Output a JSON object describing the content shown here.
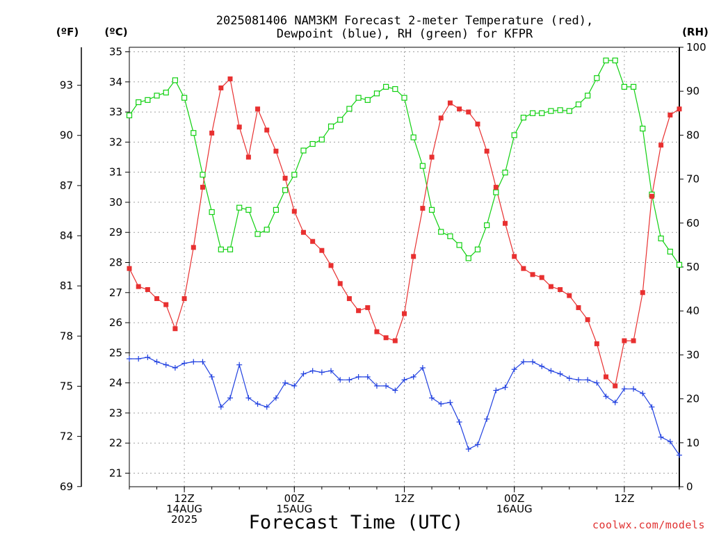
{
  "chart_data": {
    "type": "line",
    "title_line1": "2025081406 NAM3KM Forecast 2-meter Temperature (red),",
    "title_line2": "Dewpoint (blue), RH (green) for KFPR",
    "xlabel": "Forecast Time (UTC)",
    "left_unit_f": "(ºF)",
    "left_unit_c": "(ºC)",
    "right_unit": "(RH)",
    "credit": "coolwx.com/models",
    "grid": true,
    "x_ticks": [
      {
        "hour": 6,
        "lines": [
          "12Z",
          "14AUG",
          "2025"
        ]
      },
      {
        "hour": 18,
        "lines": [
          "00Z",
          "15AUG"
        ]
      },
      {
        "hour": 30,
        "lines": [
          "12Z"
        ]
      },
      {
        "hour": 42,
        "lines": [
          "00Z",
          "16AUG"
        ]
      },
      {
        "hour": 54,
        "lines": [
          "12Z"
        ]
      }
    ],
    "x_range_hours": [
      0,
      60
    ],
    "c_ticks": [
      21,
      22,
      23,
      24,
      25,
      26,
      27,
      28,
      29,
      30,
      31,
      32,
      33,
      34,
      35
    ],
    "f_ticks": [
      69,
      72,
      75,
      78,
      81,
      84,
      87,
      90,
      93
    ],
    "rh_ticks": [
      0,
      10,
      20,
      30,
      40,
      50,
      60,
      70,
      80,
      90,
      100
    ],
    "c_range": [
      20.55,
      35.15
    ],
    "rh_range": [
      0,
      100
    ],
    "colors": {
      "temperature": "#e83030",
      "dewpoint": "#2040e0",
      "rh": "#10d010",
      "axis": "#000000",
      "grid": "#a0a0a0",
      "credit": "#e03030"
    },
    "series": [
      {
        "name": "Temperature",
        "unit": "°C",
        "values": [
          27.8,
          27.2,
          27.1,
          26.8,
          26.6,
          25.8,
          26.8,
          28.5,
          30.5,
          32.3,
          33.8,
          34.1,
          32.5,
          31.5,
          33.1,
          32.4,
          31.7,
          30.8,
          29.7,
          29.0,
          28.7,
          28.4,
          27.9,
          27.3,
          26.8,
          26.4,
          26.5,
          25.7,
          25.5,
          25.4,
          26.3,
          28.2,
          29.8,
          31.5,
          32.8,
          33.3,
          33.1,
          33.0,
          32.6,
          31.7,
          30.5,
          29.3,
          28.2,
          27.8,
          27.6,
          27.5,
          27.2,
          27.1,
          26.9,
          26.5,
          26.1,
          25.3,
          24.2,
          23.9,
          25.4,
          25.4,
          27.0,
          30.2,
          31.9,
          32.9,
          33.1
        ]
      },
      {
        "name": "Dewpoint",
        "unit": "°C",
        "values": [
          24.8,
          24.8,
          24.85,
          24.7,
          24.6,
          24.5,
          24.65,
          24.7,
          24.7,
          24.2,
          23.2,
          23.5,
          24.6,
          23.5,
          23.3,
          23.2,
          23.5,
          24.0,
          23.9,
          24.3,
          24.4,
          24.35,
          24.4,
          24.1,
          24.1,
          24.2,
          24.2,
          23.9,
          23.9,
          23.75,
          24.1,
          24.2,
          24.5,
          23.5,
          23.3,
          23.35,
          22.7,
          21.8,
          21.95,
          22.8,
          23.75,
          23.85,
          24.45,
          24.7,
          24.7,
          24.55,
          24.4,
          24.3,
          24.15,
          24.1,
          24.1,
          24.0,
          23.55,
          23.35,
          23.8,
          23.8,
          23.65,
          23.2,
          22.2,
          22.05,
          21.6
        ]
      },
      {
        "name": "RH",
        "unit": "%",
        "values": [
          84.5,
          87.5,
          88.0,
          89.0,
          89.7,
          92.5,
          88.5,
          80.5,
          71.0,
          62.5,
          54.0,
          54.0,
          63.5,
          63.0,
          57.5,
          58.5,
          63.0,
          67.5,
          71.0,
          76.5,
          78.0,
          79.0,
          82.0,
          83.5,
          86.0,
          88.5,
          88.0,
          89.5,
          91.0,
          90.5,
          88.5,
          79.5,
          73.0,
          63.0,
          58.0,
          57.0,
          55.0,
          52.0,
          54.0,
          59.5,
          67.0,
          71.5,
          80.0,
          84.0,
          85.0,
          85.0,
          85.5,
          85.7,
          85.5,
          87.0,
          89.0,
          93.0,
          97.0,
          97.0,
          91.0,
          91.0,
          81.5,
          66.5,
          56.5,
          53.5,
          50.5
        ]
      }
    ]
  }
}
